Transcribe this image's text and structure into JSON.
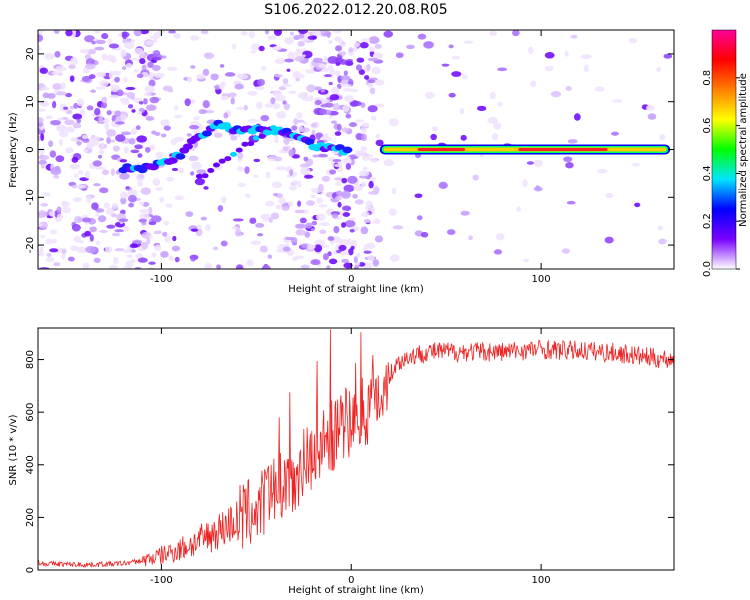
{
  "title": "S106.2022.012.20.08.R05",
  "chart_data": [
    {
      "type": "heatmap",
      "xlabel": "Height of straight line (km)",
      "ylabel": "Frequency (Hz)",
      "xlim": [
        -165,
        170
      ],
      "ylim": [
        -25,
        25
      ],
      "x_ticks": [
        "-100",
        "0",
        "100"
      ],
      "y_ticks": [
        "-20",
        "-10",
        "0",
        "10",
        "20"
      ],
      "colorbar": {
        "label": "Normalized spectral amplitude",
        "range": [
          0,
          1
        ],
        "ticks": [
          "0.0",
          "0.2",
          "0.4",
          "0.6",
          "0.8"
        ],
        "colors": [
          "#ffffff",
          "#7a00ff",
          "#0000ff",
          "#00e5ff",
          "#00ff00",
          "#ffff00",
          "#ff7f00",
          "#ff0000",
          "#ff0099"
        ]
      },
      "features": [
        {
          "name": "drifting_tone",
          "x": [
            -120,
            -110,
            -100,
            -90,
            -80,
            -70,
            -60,
            -50,
            -40,
            -30,
            -20,
            -10,
            0
          ],
          "y": [
            -4,
            -4,
            -3,
            -1,
            3,
            5,
            4,
            4,
            4,
            3,
            1,
            0,
            0
          ]
        },
        {
          "name": "steady_carrier",
          "x_start": 15,
          "x_end": 168,
          "y": 0
        }
      ]
    },
    {
      "type": "line",
      "xlabel": "Height of straight line (km)",
      "ylabel": "SNR (10 * v/v)",
      "xlim": [
        -165,
        170
      ],
      "ylim": [
        0,
        920
      ],
      "x_ticks": [
        "-100",
        "0",
        "100"
      ],
      "y_ticks": [
        "0",
        "200",
        "400",
        "600",
        "800"
      ],
      "color": "#ee2222",
      "series": [
        {
          "x": [
            -165,
            -150,
            -140,
            -130,
            -120,
            -110,
            -100,
            -90,
            -80,
            -70,
            -60,
            -50,
            -40,
            -30,
            -20,
            -10,
            0,
            5,
            10,
            15,
            20,
            25,
            30,
            40,
            50,
            60,
            70,
            80,
            90,
            100,
            110,
            120,
            130,
            140,
            150,
            160,
            170
          ],
          "values": [
            25,
            22,
            20,
            22,
            25,
            35,
            55,
            80,
            110,
            150,
            190,
            230,
            290,
            360,
            450,
            510,
            560,
            600,
            620,
            670,
            740,
            790,
            810,
            830,
            830,
            830,
            830,
            830,
            835,
            840,
            835,
            835,
            830,
            825,
            815,
            805,
            800
          ]
        }
      ]
    }
  ]
}
